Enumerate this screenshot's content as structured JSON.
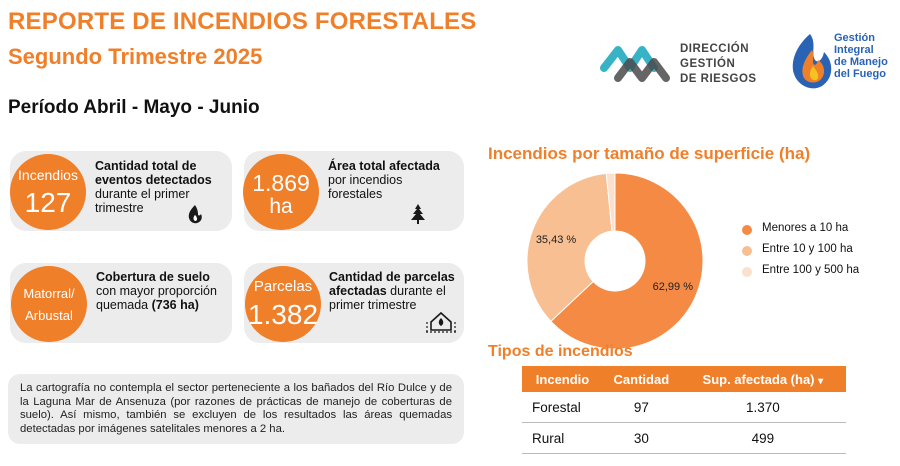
{
  "header": {
    "title_line1": "REPORTE DE INCENDIOS FORESTALES",
    "title_line2": "Segundo Trimestre 2025",
    "period": "Período Abril - Mayo - Junio"
  },
  "logos": {
    "left_lines": [
      "DIRECCIÓN",
      "GESTIÓN",
      "DE RIESGOS"
    ],
    "right_lines": [
      "Gestión",
      "Integral",
      "de Manejo",
      "del Fuego"
    ]
  },
  "cards": {
    "fires": {
      "circle_label": "Incendios",
      "circle_value": "127",
      "text_bold": "Cantidad total de eventos detectados",
      "text_regular": " durante el primer trimestre",
      "icon": "fire-icon"
    },
    "area": {
      "circle_value_line1": "1.869",
      "circle_value_line2": "ha",
      "text_bold": "Área total afectada",
      "text_regular": " por incendios forestales",
      "icon": "burning-tree-icon"
    },
    "cover": {
      "circle_line1": "Matorral/",
      "circle_line2": "Arbustal",
      "text_bold": "Cobertura de suelo",
      "text_regular": " con mayor proporción quemada ",
      "text_bold2": "(736 ha)"
    },
    "parcels": {
      "circle_label": "Parcelas",
      "circle_value": "1.382",
      "text_bold": "Cantidad de parcelas afectadas",
      "text_regular": " durante el primer trimestre",
      "icon": "house-fire-icon"
    }
  },
  "note": "La cartografía no contempla el sector perteneciente a los bañados del Río Dulce y de la Laguna Mar de Ansenuza (por razones de prácticas de manejo de coberturas de suelo). Así mismo, también se excluyen de los resultados las áreas quemadas detectadas por imágenes satelitales menores a 2 ha.",
  "chart_data": {
    "type": "pie",
    "title": "Incendios por tamaño de superficie (ha)",
    "donut": true,
    "categories": [
      "Menores a 10 ha",
      "Entre 10 y 100 ha",
      "Entre 100 y 500 ha"
    ],
    "values": [
      62.99,
      35.43,
      1.58
    ],
    "data_labels": [
      "62,99 %",
      "35,43 %",
      ""
    ],
    "colors": [
      "#f58a45",
      "#f8bf93",
      "#fbe0cd"
    ],
    "legend_position": "right"
  },
  "table": {
    "title": "Tipos de incendios",
    "columns": [
      "Incendio",
      "Cantidad",
      "Sup. afectada (ha)"
    ],
    "sort_indicator": "▾",
    "rows": [
      [
        "Forestal",
        "97",
        "1.370"
      ],
      [
        "Rural",
        "30",
        "499"
      ]
    ]
  }
}
